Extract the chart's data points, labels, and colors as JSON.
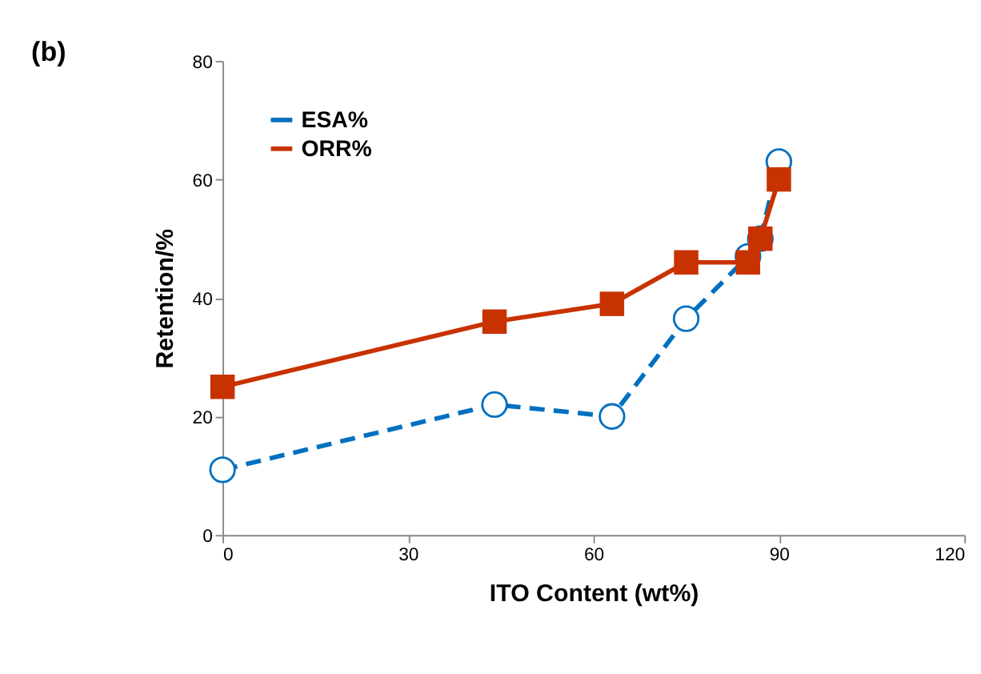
{
  "chart_data": {
    "type": "line",
    "title": "(b)",
    "xlabel": "ITO Content (wt%)",
    "ylabel": "Retention/%",
    "xlim": [
      0,
      120
    ],
    "xticks": [
      0,
      30,
      60,
      90,
      120
    ],
    "ylim": [
      0,
      80
    ],
    "yticks": [
      0,
      20,
      40,
      60,
      80
    ],
    "grid": false,
    "legend": "top left",
    "series": [
      {
        "name": "ESA%",
        "color": "#0070c0",
        "x": [
          0,
          44,
          63,
          75,
          85,
          87,
          90
        ],
        "values": [
          11,
          22,
          20,
          36.5,
          47,
          50,
          63
        ],
        "marker": "circle",
        "line_style": "dashed"
      },
      {
        "name": "ORR%",
        "color": "#c83200",
        "x": [
          0,
          44,
          63,
          75,
          85,
          87,
          90
        ],
        "values": [
          25,
          36,
          39,
          46,
          46,
          50,
          60
        ],
        "marker": "square",
        "line_style": "solid"
      }
    ]
  }
}
